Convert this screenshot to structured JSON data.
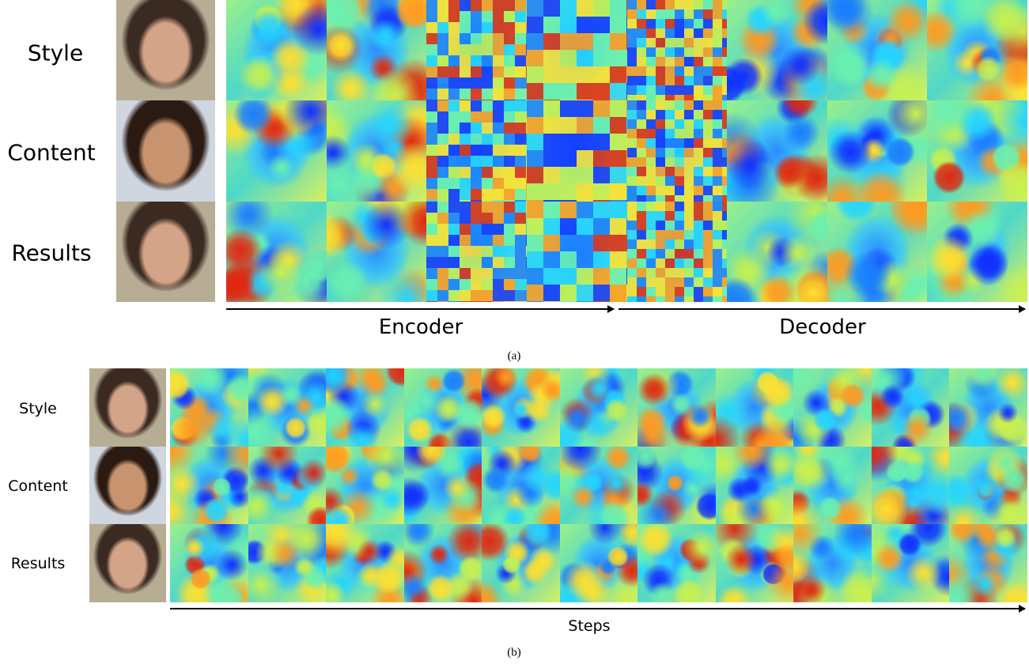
{
  "panel_a": {
    "row_labels": [
      "Style",
      "Content",
      "Results"
    ],
    "encoder_label": "Encoder",
    "decoder_label": "Decoder",
    "caption": "(a)"
  },
  "panel_b": {
    "row_labels": [
      "Style",
      "Content",
      "Results"
    ],
    "axis_label": "Steps",
    "caption": "(b)"
  }
}
